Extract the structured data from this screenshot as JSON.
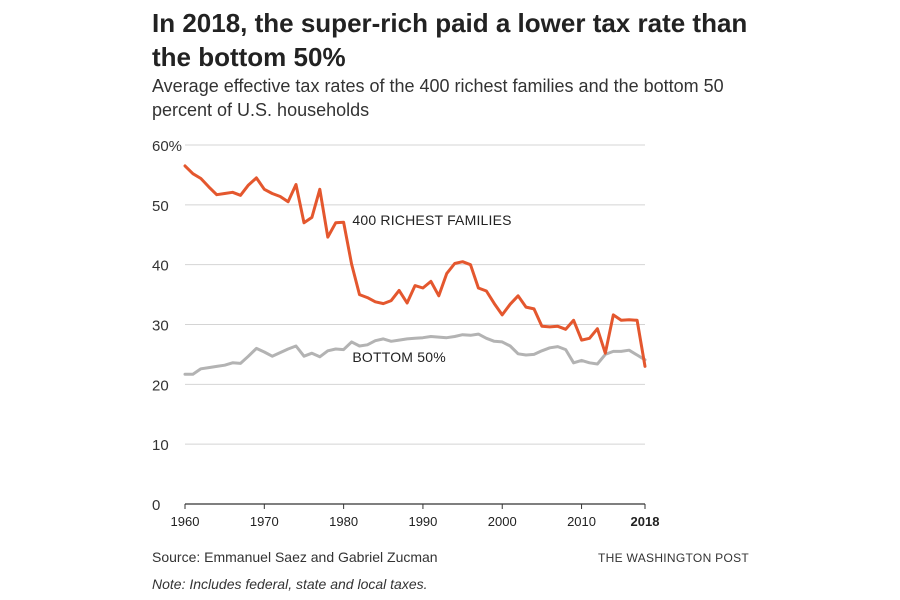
{
  "title": "In 2018, the super-rich paid a lower tax rate than the bottom 50%",
  "subtitle": "Average effective tax rates of the 400 richest families and the bottom 50 percent of U.S. households",
  "source": "Source: Emmanuel Saez and Gabriel Zucman",
  "note": "Note: Includes federal, state and local taxes.",
  "credit": "THE WASHINGTON POST",
  "chart_data": {
    "type": "line",
    "xlim": [
      1960,
      2018
    ],
    "ylim": [
      0,
      60
    ],
    "x_ticks": [
      {
        "value": 1960,
        "label": "1960",
        "bold": false
      },
      {
        "value": 1970,
        "label": "1970",
        "bold": false
      },
      {
        "value": 1980,
        "label": "1980",
        "bold": false
      },
      {
        "value": 1990,
        "label": "1990",
        "bold": false
      },
      {
        "value": 2000,
        "label": "2000",
        "bold": false
      },
      {
        "value": 2010,
        "label": "2010",
        "bold": false
      },
      {
        "value": 2018,
        "label": "2018",
        "bold": true
      }
    ],
    "y_ticks": [
      {
        "value": 0,
        "label": "0"
      },
      {
        "value": 10,
        "label": "10"
      },
      {
        "value": 20,
        "label": "20"
      },
      {
        "value": 30,
        "label": "30"
      },
      {
        "value": 40,
        "label": "40"
      },
      {
        "value": 50,
        "label": "50"
      },
      {
        "value": 60,
        "label": "60%"
      }
    ],
    "grid": true,
    "x": [
      1960,
      1961,
      1962,
      1963,
      1964,
      1965,
      1966,
      1967,
      1968,
      1969,
      1970,
      1971,
      1972,
      1973,
      1974,
      1975,
      1976,
      1977,
      1978,
      1979,
      1980,
      1981,
      1982,
      1983,
      1984,
      1985,
      1986,
      1987,
      1988,
      1989,
      1990,
      1991,
      1992,
      1993,
      1994,
      1995,
      1996,
      1997,
      1998,
      1999,
      2000,
      2001,
      2002,
      2003,
      2004,
      2005,
      2006,
      2007,
      2008,
      2009,
      2010,
      2011,
      2012,
      2013,
      2014,
      2015,
      2016,
      2017,
      2018
    ],
    "series": [
      {
        "name": "400 RICHEST FAMILIES",
        "color": "#e4572e",
        "values": [
          56.5,
          55.2,
          54.4,
          53.0,
          51.7,
          51.9,
          52.1,
          51.6,
          53.3,
          54.5,
          52.6,
          51.9,
          51.4,
          50.5,
          53.4,
          47.0,
          47.9,
          52.6,
          44.6,
          47.0,
          47.1,
          40.1,
          35.0,
          34.5,
          33.8,
          33.5,
          34.0,
          35.7,
          33.6,
          36.5,
          36.1,
          37.2,
          34.8,
          38.5,
          40.2,
          40.5,
          40.0,
          36.1,
          35.6,
          33.5,
          31.6,
          33.4,
          34.8,
          32.9,
          32.6,
          29.7,
          29.6,
          29.7,
          29.2,
          30.7,
          27.4,
          27.7,
          29.3,
          25.2,
          31.6,
          30.7,
          30.8,
          30.7,
          23.0
        ]
      },
      {
        "name": "BOTTOM 50%",
        "color": "#b3b3b3",
        "values": [
          21.7,
          21.7,
          22.6,
          22.8,
          23.0,
          23.2,
          23.6,
          23.5,
          24.7,
          26.0,
          25.4,
          24.7,
          25.3,
          25.9,
          26.4,
          24.7,
          25.2,
          24.6,
          25.6,
          25.9,
          25.8,
          27.1,
          26.4,
          26.6,
          27.3,
          27.6,
          27.2,
          27.4,
          27.6,
          27.7,
          27.8,
          28.0,
          27.9,
          27.8,
          28.0,
          28.3,
          28.2,
          28.4,
          27.7,
          27.2,
          27.1,
          26.4,
          25.1,
          24.9,
          25.0,
          25.6,
          26.1,
          26.3,
          25.8,
          23.6,
          24.0,
          23.6,
          23.4,
          25.0,
          25.5,
          25.5,
          25.7,
          24.9,
          24.1
        ]
      }
    ],
    "annotations": [
      {
        "text": "400 RICHEST FAMILIES",
        "x": 1981.1,
        "y": 46.6,
        "series": 0
      },
      {
        "text": "BOTTOM 50%",
        "x": 1981.1,
        "y": 23.7,
        "series": 1
      }
    ]
  }
}
